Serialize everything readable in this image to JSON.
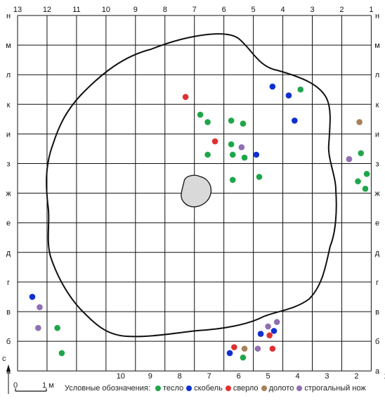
{
  "columns": [
    "13",
    "12",
    "11",
    "10",
    "9",
    "8",
    "7",
    "6",
    "5",
    "4",
    "3",
    "2",
    "1"
  ],
  "bottom_columns": [
    "10",
    "9",
    "8",
    "7",
    "6",
    "5",
    "4",
    "3",
    "2",
    "1"
  ],
  "rows": [
    "н",
    "м",
    "л",
    "к",
    "и",
    "з",
    "ж",
    "е",
    "д",
    "г",
    "в",
    "б",
    "а"
  ],
  "north_label": "с",
  "scale": {
    "zero": "0",
    "one": "1 м"
  },
  "legend": {
    "title": "Условные обозначения:",
    "items": [
      {
        "key": "teslo",
        "label": "тесло",
        "color": "#1fa64a"
      },
      {
        "key": "skobel",
        "label": "скобель",
        "color": "#1030d0"
      },
      {
        "key": "sverlo",
        "label": "сверло",
        "color": "#e03030"
      },
      {
        "key": "doloto",
        "label": "долото",
        "color": "#a8805a"
      },
      {
        "key": "strug",
        "label": "строгальный нож",
        "color": "#9070b0"
      }
    ]
  },
  "finds": [
    {
      "type": "teslo",
      "col": 3.4,
      "row": 2.5
    },
    {
      "type": "teslo",
      "col": 6.8,
      "row": 3.35
    },
    {
      "type": "teslo",
      "col": 6.55,
      "row": 3.6
    },
    {
      "type": "teslo",
      "col": 5.75,
      "row": 3.55
    },
    {
      "type": "teslo",
      "col": 5.35,
      "row": 3.65
    },
    {
      "type": "teslo",
      "col": 5.75,
      "row": 4.35
    },
    {
      "type": "teslo",
      "col": 5.7,
      "row": 4.7
    },
    {
      "type": "teslo",
      "col": 5.3,
      "row": 4.8
    },
    {
      "type": "teslo",
      "col": 6.55,
      "row": 4.7
    },
    {
      "type": "teslo",
      "col": 4.8,
      "row": 5.45
    },
    {
      "type": "teslo",
      "col": 5.7,
      "row": 5.55
    },
    {
      "type": "teslo",
      "col": 1.35,
      "row": 4.65
    },
    {
      "type": "teslo",
      "col": 1.15,
      "row": 5.35
    },
    {
      "type": "teslo",
      "col": 1.45,
      "row": 5.6
    },
    {
      "type": "teslo",
      "col": 1.2,
      "row": 5.85
    },
    {
      "type": "teslo",
      "col": 11.65,
      "row": 10.55
    },
    {
      "type": "teslo",
      "col": 11.5,
      "row": 11.4
    },
    {
      "type": "teslo",
      "col": 5.35,
      "row": 11.55
    },
    {
      "type": "skobel",
      "col": 4.35,
      "row": 2.4
    },
    {
      "type": "skobel",
      "col": 3.8,
      "row": 2.7
    },
    {
      "type": "skobel",
      "col": 3.6,
      "row": 3.55
    },
    {
      "type": "skobel",
      "col": 4.9,
      "row": 4.7
    },
    {
      "type": "skobel",
      "col": 12.5,
      "row": 9.5
    },
    {
      "type": "skobel",
      "col": 4.75,
      "row": 10.75
    },
    {
      "type": "skobel",
      "col": 4.3,
      "row": 10.65
    },
    {
      "type": "skobel",
      "col": 5.8,
      "row": 11.4
    },
    {
      "type": "sverlo",
      "col": 7.3,
      "row": 2.75
    },
    {
      "type": "sverlo",
      "col": 6.3,
      "row": 4.25
    },
    {
      "type": "sverlo",
      "col": 4.45,
      "row": 10.8
    },
    {
      "type": "sverlo",
      "col": 5.65,
      "row": 11.2
    },
    {
      "type": "sverlo",
      "col": 4.35,
      "row": 11.25
    },
    {
      "type": "doloto",
      "col": 1.4,
      "row": 3.6
    },
    {
      "type": "doloto",
      "col": 5.3,
      "row": 11.25
    },
    {
      "type": "strug",
      "col": 1.75,
      "row": 4.85
    },
    {
      "type": "strug",
      "col": 5.4,
      "row": 4.45
    },
    {
      "type": "strug",
      "col": 12.25,
      "row": 9.85
    },
    {
      "type": "strug",
      "col": 12.3,
      "row": 10.55
    },
    {
      "type": "strug",
      "col": 4.2,
      "row": 10.35
    },
    {
      "type": "strug",
      "col": 4.5,
      "row": 10.5
    },
    {
      "type": "strug",
      "col": 4.85,
      "row": 11.25
    }
  ]
}
